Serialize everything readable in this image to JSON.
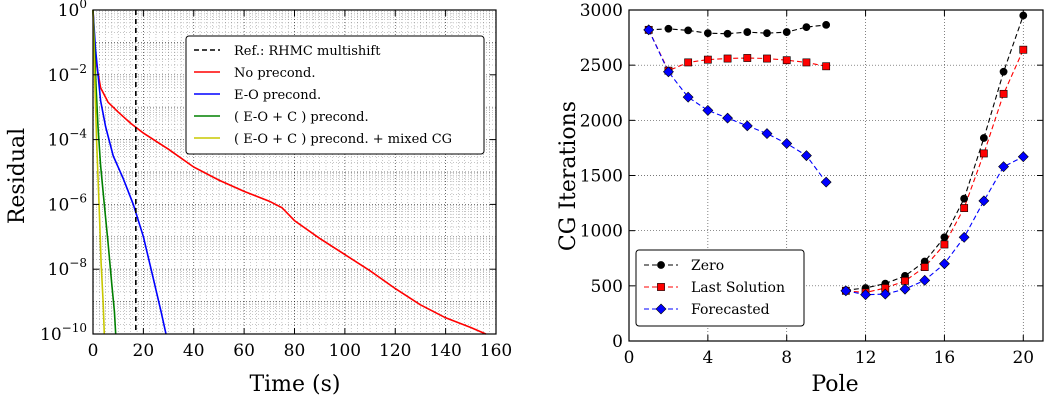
{
  "chart_data": [
    {
      "type": "line",
      "xlabel": "Time (s)",
      "ylabel": "Residual",
      "xlim": [
        0,
        160
      ],
      "ylim_log10": [
        -10,
        0
      ],
      "xticks": [
        "0",
        "20",
        "40",
        "60",
        "80",
        "100",
        "120",
        "140",
        "160"
      ],
      "yticks": [
        {
          "base": "10",
          "exp": "0",
          "value": 0
        },
        {
          "base": "10",
          "exp": "−2",
          "value": -2
        },
        {
          "base": "10",
          "exp": "−4",
          "value": -4
        },
        {
          "base": "10",
          "exp": "−6",
          "value": -6
        },
        {
          "base": "10",
          "exp": "−8",
          "value": -8
        },
        {
          "base": "10",
          "exp": "−10",
          "value": -10
        }
      ],
      "grid": true,
      "legend_position": "top-right",
      "vline": {
        "name": "Ref.: RHMC multishift",
        "x": 17,
        "color": "#000000",
        "style": "dashed"
      },
      "series": [
        {
          "name": "No precond.",
          "color": "#ff0000",
          "points": [
            [
              0,
              0
            ],
            [
              1,
              -1.5
            ],
            [
              3,
              -2.4
            ],
            [
              6,
              -2.85
            ],
            [
              10,
              -3.15
            ],
            [
              15,
              -3.5
            ],
            [
              20,
              -3.8
            ],
            [
              30,
              -4.3
            ],
            [
              40,
              -4.85
            ],
            [
              50,
              -5.25
            ],
            [
              60,
              -5.6
            ],
            [
              70,
              -5.9
            ],
            [
              75,
              -6.1
            ],
            [
              80,
              -6.5
            ],
            [
              90,
              -7.05
            ],
            [
              100,
              -7.55
            ],
            [
              110,
              -8.05
            ],
            [
              120,
              -8.6
            ],
            [
              130,
              -9.1
            ],
            [
              140,
              -9.5
            ],
            [
              150,
              -9.8
            ],
            [
              156,
              -10
            ]
          ]
        },
        {
          "name": "E-O precond.",
          "color": "#0000ff",
          "points": [
            [
              0,
              0
            ],
            [
              1,
              -1.2
            ],
            [
              3,
              -2.8
            ],
            [
              5,
              -3.6
            ],
            [
              8,
              -4.5
            ],
            [
              12,
              -5.2
            ],
            [
              16,
              -6.0
            ],
            [
              20,
              -7.0
            ],
            [
              24,
              -8.3
            ],
            [
              27,
              -9.3
            ],
            [
              29,
              -10
            ]
          ]
        },
        {
          "name": "( E-O + C ) precond.",
          "color": "#008000",
          "points": [
            [
              0,
              0
            ],
            [
              1,
              -2.0
            ],
            [
              2,
              -3.6
            ],
            [
              3,
              -4.8
            ],
            [
              4.5,
              -6.0
            ],
            [
              6,
              -7.2
            ],
            [
              7.5,
              -8.5
            ],
            [
              8.5,
              -9.3
            ],
            [
              9,
              -10
            ]
          ]
        },
        {
          "name": "( E-O + C ) precond. + mixed CG",
          "color": "#c8c800",
          "points": [
            [
              0,
              0
            ],
            [
              0.7,
              -2.2
            ],
            [
              1.5,
              -4.2
            ],
            [
              2.5,
              -6.2
            ],
            [
              3.2,
              -7.8
            ],
            [
              4,
              -9.0
            ],
            [
              4.5,
              -10
            ]
          ]
        }
      ]
    },
    {
      "type": "line",
      "xlabel": "Pole",
      "ylabel": "CG Iterations",
      "xlim": [
        0,
        21
      ],
      "ylim": [
        0,
        3000
      ],
      "xticks": [
        0,
        4,
        8,
        12,
        16,
        20
      ],
      "yticks": [
        0,
        500,
        1000,
        1500,
        2000,
        2500,
        3000
      ],
      "grid": true,
      "legend_position": "bottom-left",
      "series": [
        {
          "name": "Zero",
          "color": "#000000",
          "marker": "circle",
          "segments": [
            [
              [
                1,
                2820
              ],
              [
                2,
                2830
              ],
              [
                3,
                2815
              ],
              [
                4,
                2790
              ],
              [
                5,
                2785
              ],
              [
                6,
                2800
              ],
              [
                7,
                2790
              ],
              [
                8,
                2800
              ],
              [
                9,
                2845
              ],
              [
                10,
                2865
              ]
            ],
            [
              [
                11,
                460
              ],
              [
                12,
                480
              ],
              [
                13,
                520
              ],
              [
                14,
                590
              ],
              [
                15,
                720
              ],
              [
                16,
                940
              ],
              [
                17,
                1290
              ],
              [
                18,
                1840
              ],
              [
                19,
                2440
              ],
              [
                20,
                2950
              ]
            ]
          ]
        },
        {
          "name": "Last Solution",
          "color": "#ff0000",
          "marker": "square",
          "segments": [
            [
              [
                1,
                2820
              ],
              [
                2,
                2450
              ],
              [
                3,
                2525
              ],
              [
                4,
                2550
              ],
              [
                5,
                2560
              ],
              [
                6,
                2565
              ],
              [
                7,
                2560
              ],
              [
                8,
                2545
              ],
              [
                9,
                2525
              ],
              [
                10,
                2490
              ]
            ],
            [
              [
                11,
                455
              ],
              [
                12,
                440
              ],
              [
                13,
                480
              ],
              [
                14,
                545
              ],
              [
                15,
                670
              ],
              [
                16,
                875
              ],
              [
                17,
                1205
              ],
              [
                18,
                1700
              ],
              [
                19,
                2240
              ],
              [
                20,
                2640
              ]
            ]
          ]
        },
        {
          "name": "Forecasted",
          "color": "#0000ff",
          "marker": "diamond",
          "segments": [
            [
              [
                1,
                2820
              ],
              [
                2,
                2440
              ],
              [
                3,
                2210
              ],
              [
                4,
                2090
              ],
              [
                5,
                2020
              ],
              [
                6,
                1950
              ],
              [
                7,
                1880
              ],
              [
                8,
                1790
              ],
              [
                9,
                1680
              ],
              [
                10,
                1440
              ]
            ],
            [
              [
                11,
                455
              ],
              [
                12,
                420
              ],
              [
                13,
                425
              ],
              [
                14,
                470
              ],
              [
                15,
                550
              ],
              [
                16,
                700
              ],
              [
                17,
                940
              ],
              [
                18,
                1270
              ],
              [
                19,
                1580
              ],
              [
                20,
                1670
              ]
            ]
          ]
        }
      ]
    }
  ]
}
